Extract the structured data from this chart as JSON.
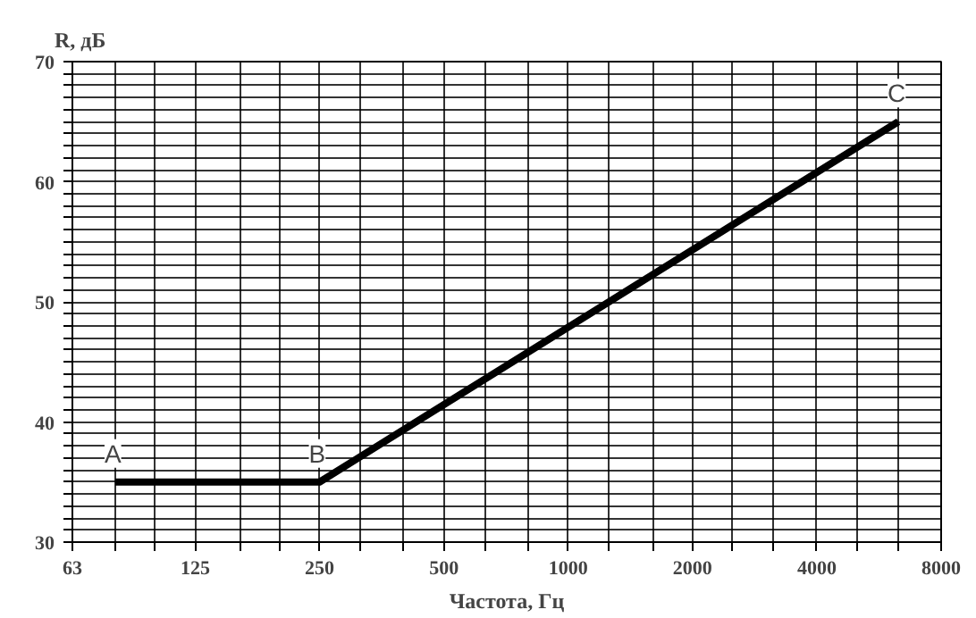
{
  "chart_data": {
    "type": "line",
    "xlabel": "Частота, Гц",
    "ylabel": "R, дБ",
    "log": "x",
    "xlim": [
      63,
      8000
    ],
    "ylim": [
      30,
      70
    ],
    "xticks": [
      63,
      {
        "value": 80,
        "label": null
      },
      {
        "value": 100,
        "label": null
      },
      125,
      {
        "value": 160,
        "label": null
      },
      {
        "value": 200,
        "label": null
      },
      250,
      {
        "value": 315,
        "label": null
      },
      {
        "value": 400,
        "label": null
      },
      500,
      {
        "value": 630,
        "label": null
      },
      {
        "value": 800,
        "label": null
      },
      1000,
      {
        "value": 1250,
        "label": null
      },
      {
        "value": 1600,
        "label": null
      },
      2000,
      {
        "value": 2500,
        "label": null
      },
      {
        "value": 3150,
        "label": null
      },
      4000,
      {
        "value": 5000,
        "label": null
      },
      {
        "value": 6300,
        "label": null
      },
      8000
    ],
    "yticks": [
      30,
      {
        "value": 31,
        "label": null
      },
      {
        "value": 32,
        "label": null
      },
      {
        "value": 33,
        "label": null
      },
      {
        "value": 34,
        "label": null
      },
      {
        "value": 35,
        "label": null
      },
      {
        "value": 36,
        "label": null
      },
      {
        "value": 37,
        "label": null
      },
      {
        "value": 38,
        "label": null
      },
      {
        "value": 39,
        "label": null
      },
      40,
      {
        "value": 41,
        "label": null
      },
      {
        "value": 42,
        "label": null
      },
      {
        "value": 43,
        "label": null
      },
      {
        "value": 44,
        "label": null
      },
      {
        "value": 45,
        "label": null
      },
      {
        "value": 46,
        "label": null
      },
      {
        "value": 47,
        "label": null
      },
      {
        "value": 48,
        "label": null
      },
      {
        "value": 49,
        "label": null
      },
      50,
      {
        "value": 51,
        "label": null
      },
      {
        "value": 52,
        "label": null
      },
      {
        "value": 53,
        "label": null
      },
      {
        "value": 54,
        "label": null
      },
      {
        "value": 55,
        "label": null
      },
      {
        "value": 56,
        "label": null
      },
      {
        "value": 57,
        "label": null
      },
      {
        "value": 58,
        "label": null
      },
      {
        "value": 59,
        "label": null
      },
      60,
      {
        "value": 61,
        "label": null
      },
      {
        "value": 62,
        "label": null
      },
      {
        "value": 63,
        "label": null
      },
      {
        "value": 64,
        "label": null
      },
      {
        "value": 65,
        "label": null
      },
      {
        "value": 66,
        "label": null
      },
      {
        "value": 67,
        "label": null
      },
      {
        "value": 68,
        "label": null
      },
      {
        "value": 69,
        "label": null
      },
      70
    ],
    "grid": true,
    "marker": "none",
    "line_style": "solid",
    "x": [
      80,
      250,
      6300
    ],
    "series": [
      {
        "color": "#000000",
        "values": [
          35,
          35,
          65
        ]
      }
    ],
    "annotations": [
      {
        "text": "A",
        "x": 80,
        "y": 35
      },
      {
        "text": "B",
        "x": 250,
        "y": 35
      },
      {
        "text": "C",
        "x": 6300,
        "y": 65
      }
    ]
  }
}
